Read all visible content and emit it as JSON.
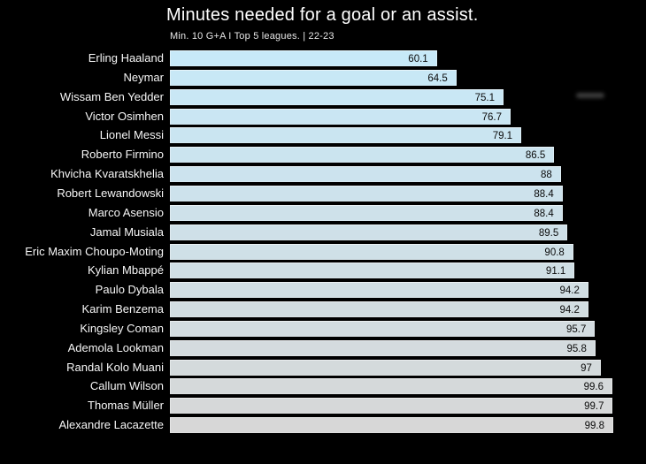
{
  "title": "Minutes needed for a goal or an assist.",
  "subtitle": "Min. 10 G+A I Top 5 leagues. | 22-23",
  "colors": {
    "background": "#000000",
    "title_text": "#ffffff",
    "subtitle_text": "#e8e8e8",
    "player_label_text": "#f7f7f7",
    "value_label_text": "#0a0a0a",
    "bar_gradient_top": "#c7e9f8",
    "bar_gradient_bottom": "#d7d7d7"
  },
  "chart_data": {
    "type": "bar",
    "orientation": "horizontal",
    "title": "Minutes needed for a goal or an assist.",
    "subtitle": "Min. 10 G+A I Top 5 leagues. | 22-23",
    "xlabel": "",
    "ylabel": "",
    "xlim": [
      0,
      100
    ],
    "grid": false,
    "legend": false,
    "sort_order": "ascending",
    "categories": [
      "Erling Haaland",
      "Neymar",
      "Wissam Ben Yedder",
      "Victor Osimhen",
      "Lionel Messi",
      "Roberto Firmino",
      "Khvicha Kvaratskhelia",
      "Robert Lewandowski",
      "Marco Asensio",
      "Jamal Musiala",
      "Eric Maxim Choupo-Moting",
      "Kylian Mbappé",
      "Paulo Dybala",
      "Karim Benzema",
      "Kingsley Coman",
      "Ademola Lookman",
      "Randal Kolo Muani",
      "Callum Wilson",
      "Thomas Müller",
      "Alexandre Lacazette"
    ],
    "values": [
      60.1,
      64.5,
      75.1,
      76.7,
      79.1,
      86.5,
      88,
      88.4,
      88.4,
      89.5,
      90.8,
      91.1,
      94.2,
      94.2,
      95.7,
      95.8,
      97,
      99.6,
      99.7,
      99.8
    ],
    "value_labels": [
      "60.1",
      "64.5",
      "75.1",
      "76.7",
      "79.1",
      "86.5",
      "88",
      "88.4",
      "88.4",
      "89.5",
      "90.8",
      "91.1",
      "94.2",
      "94.2",
      "95.7",
      "95.8",
      "97",
      "99.6",
      "99.7",
      "99.8"
    ]
  }
}
